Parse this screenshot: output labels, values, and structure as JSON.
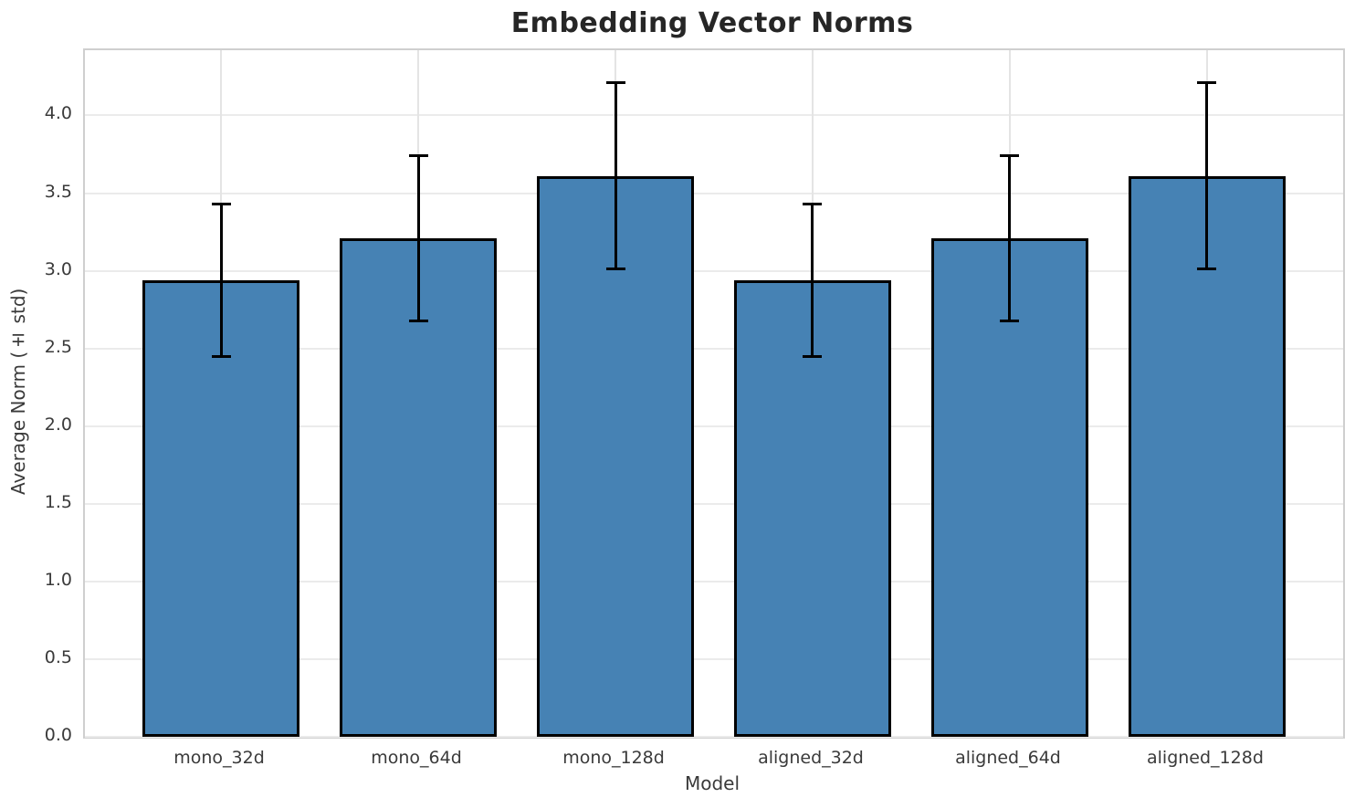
{
  "chart_data": {
    "type": "bar",
    "title": "Embedding Vector Norms",
    "xlabel": "Model",
    "ylabel": "Average Norm (± std)",
    "categories": [
      "mono_32d",
      "mono_64d",
      "mono_128d",
      "aligned_32d",
      "aligned_64d",
      "aligned_128d"
    ],
    "values": [
      2.94,
      3.21,
      3.61,
      2.94,
      3.21,
      3.61
    ],
    "errors": [
      0.49,
      0.53,
      0.6,
      0.49,
      0.53,
      0.6
    ],
    "ylim": [
      0,
      4.42
    ],
    "yticks": [
      0.0,
      0.5,
      1.0,
      1.5,
      2.0,
      2.5,
      3.0,
      3.5,
      4.0
    ],
    "ytick_labels": [
      "0.0",
      "0.5",
      "1.0",
      "1.5",
      "2.0",
      "2.5",
      "3.0",
      "3.5",
      "4.0"
    ],
    "grid": true,
    "legend": false,
    "error_caps": true,
    "colors": {
      "bar_fill": "#4682b4",
      "bar_edge": "#000000",
      "error_bar": "#000000",
      "grid_line": "#ebebeb",
      "spine": "#cfcfcf",
      "title_text": "#262626",
      "tick_text": "#3a3a3a"
    }
  }
}
